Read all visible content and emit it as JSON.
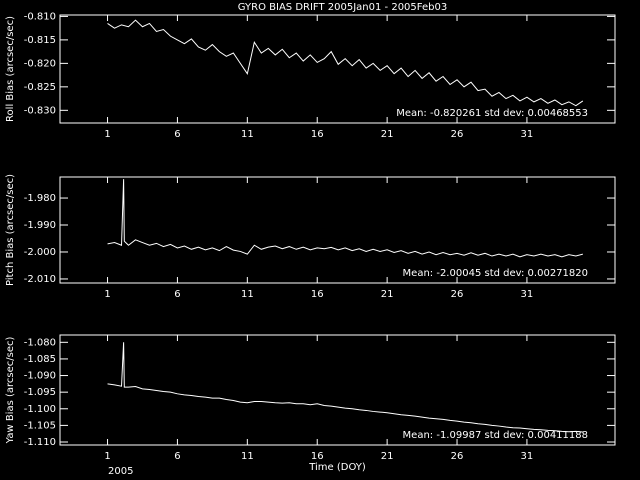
{
  "chart_data": [
    {
      "type": "line",
      "title": "GYRO BIAS DRIFT 2005Jan01 - 2005Feb03",
      "ylabel": "Roll Bias (arcsec/sec)",
      "annotation": "Mean: -0.820261 std dev: 0.00468553",
      "color": "#ffffff",
      "xlim": [
        -2.4,
        37.3
      ],
      "xticks": [
        1,
        6,
        11,
        16,
        21,
        26,
        31
      ],
      "ylim": [
        -0.8327,
        -0.8097
      ],
      "yticks": [
        {
          "value": -0.81,
          "label": "-0.810"
        },
        {
          "value": -0.815,
          "label": "-0.815"
        },
        {
          "value": -0.82,
          "label": "-0.820"
        },
        {
          "value": -0.825,
          "label": "-0.825"
        },
        {
          "value": -0.83,
          "label": "-0.830"
        }
      ],
      "x": [
        1,
        1.5,
        2,
        2.5,
        3,
        3.5,
        4,
        4.5,
        5,
        5.5,
        6,
        6.5,
        7,
        7.5,
        8,
        8.5,
        9,
        9.5,
        10,
        10.5,
        11,
        11.5,
        12,
        12.5,
        13,
        13.5,
        14,
        14.5,
        15,
        15.5,
        16,
        16.5,
        17,
        17.5,
        18,
        18.5,
        19,
        19.5,
        20,
        20.5,
        21,
        21.5,
        22,
        22.5,
        23,
        23.5,
        24,
        24.5,
        25,
        25.5,
        26,
        26.5,
        27,
        27.5,
        28,
        28.5,
        29,
        29.5,
        30,
        30.5,
        31,
        31.5,
        32,
        32.5,
        33,
        33.5,
        34,
        34.5,
        35
      ],
      "values": [
        -0.8115,
        -0.8125,
        -0.8118,
        -0.8122,
        -0.8108,
        -0.8122,
        -0.8115,
        -0.8132,
        -0.8128,
        -0.8142,
        -0.815,
        -0.8158,
        -0.8148,
        -0.8165,
        -0.8172,
        -0.816,
        -0.8175,
        -0.8185,
        -0.8178,
        -0.82,
        -0.8222,
        -0.8155,
        -0.8178,
        -0.8168,
        -0.8182,
        -0.817,
        -0.8188,
        -0.8178,
        -0.8195,
        -0.8182,
        -0.8198,
        -0.819,
        -0.8175,
        -0.8202,
        -0.819,
        -0.8205,
        -0.8192,
        -0.821,
        -0.82,
        -0.8215,
        -0.8205,
        -0.8222,
        -0.821,
        -0.8228,
        -0.8215,
        -0.8232,
        -0.822,
        -0.8238,
        -0.8228,
        -0.8245,
        -0.8235,
        -0.825,
        -0.824,
        -0.8258,
        -0.8255,
        -0.827,
        -0.8262,
        -0.8275,
        -0.8268,
        -0.828,
        -0.8272,
        -0.8282,
        -0.8275,
        -0.8285,
        -0.8278,
        -0.8288,
        -0.8282,
        -0.829,
        -0.828
      ]
    },
    {
      "type": "line",
      "ylabel": "Pitch Bias (arcsec/sec)",
      "annotation": "Mean: -2.00045 std dev: 0.00271820",
      "color": "#ffffff",
      "xlim": [
        -2.4,
        37.3
      ],
      "xticks": [
        1,
        6,
        11,
        16,
        21,
        26,
        31
      ],
      "ylim": [
        -2.0115,
        -1.9722
      ],
      "yticks": [
        {
          "value": -1.98,
          "label": "-1.980"
        },
        {
          "value": -1.99,
          "label": "-1.990"
        },
        {
          "value": -2.0,
          "label": "-2.000"
        },
        {
          "value": -2.01,
          "label": "-2.010"
        }
      ],
      "x": [
        1,
        1.5,
        2,
        2.15,
        2.2,
        2.5,
        3,
        3.5,
        4,
        4.5,
        5,
        5.5,
        6,
        6.5,
        7,
        7.5,
        8,
        8.5,
        9,
        9.5,
        10,
        10.5,
        11,
        11.5,
        12,
        12.5,
        13,
        13.5,
        14,
        14.5,
        15,
        15.5,
        16,
        16.5,
        17,
        17.5,
        18,
        18.5,
        19,
        19.5,
        20,
        20.5,
        21,
        21.5,
        22,
        22.5,
        23,
        23.5,
        24,
        24.5,
        25,
        25.5,
        26,
        26.5,
        27,
        27.5,
        28,
        28.5,
        29,
        29.5,
        30,
        30.5,
        31,
        31.5,
        32,
        32.5,
        33,
        33.5,
        34,
        34.5,
        35
      ],
      "values": [
        -1.997,
        -1.9965,
        -1.9975,
        -1.973,
        -1.996,
        -1.9975,
        -1.9955,
        -1.9965,
        -1.9975,
        -1.9968,
        -1.998,
        -1.9972,
        -1.9985,
        -1.9978,
        -1.999,
        -1.9982,
        -1.9992,
        -1.9985,
        -1.9995,
        -1.998,
        -1.9993,
        -1.9998,
        -2.0008,
        -1.9975,
        -1.999,
        -1.9982,
        -1.9978,
        -1.9988,
        -1.998,
        -1.999,
        -1.9982,
        -1.9992,
        -1.9985,
        -1.9988,
        -1.9983,
        -1.9992,
        -1.9985,
        -1.9995,
        -1.9988,
        -1.9998,
        -1.999,
        -1.9998,
        -1.9992,
        -2.0002,
        -1.9995,
        -2.0005,
        -1.9998,
        -2.0008,
        -2.0,
        -2.001,
        -2.0002,
        -2.001,
        -2.0005,
        -2.0012,
        -2.0003,
        -2.0012,
        -2.0005,
        -2.0015,
        -2.0008,
        -2.0015,
        -2.0008,
        -2.0018,
        -2.001,
        -2.0015,
        -2.0008,
        -2.0015,
        -2.001,
        -2.0018,
        -2.001,
        -2.0015,
        -2.0008
      ]
    },
    {
      "type": "line",
      "ylabel": "Yaw Bias (arcsec/sec)",
      "xlabel": "Time (DOY)",
      "annotation": "Mean: -1.09987 std dev: 0.00411188",
      "footnote": "2005",
      "color": "#ffffff",
      "xlim": [
        -2.4,
        37.3
      ],
      "xticks": [
        1,
        6,
        11,
        16,
        21,
        26,
        31
      ],
      "ylim": [
        -1.1109,
        -1.0778
      ],
      "yticks": [
        {
          "value": -1.08,
          "label": "-1.080"
        },
        {
          "value": -1.085,
          "label": "-1.085"
        },
        {
          "value": -1.09,
          "label": "-1.090"
        },
        {
          "value": -1.095,
          "label": "-1.095"
        },
        {
          "value": -1.1,
          "label": "-1.100"
        },
        {
          "value": -1.105,
          "label": "-1.105"
        },
        {
          "value": -1.11,
          "label": "-1.110"
        }
      ],
      "x": [
        1,
        1.5,
        2,
        2.15,
        2.2,
        2.5,
        3,
        3.5,
        4,
        4.5,
        5,
        5.5,
        6,
        6.5,
        7,
        7.5,
        8,
        8.5,
        9,
        9.5,
        10,
        10.5,
        11,
        11.5,
        12,
        12.5,
        13,
        13.5,
        14,
        14.5,
        15,
        15.5,
        16,
        16.5,
        17,
        17.5,
        18,
        18.5,
        19,
        19.5,
        20,
        20.5,
        21,
        21.5,
        22,
        22.5,
        23,
        23.5,
        24,
        24.5,
        25,
        25.5,
        26,
        26.5,
        27,
        27.5,
        28,
        28.5,
        29,
        29.5,
        30,
        30.5,
        31,
        31.5,
        32,
        32.5,
        33,
        33.5,
        34,
        34.5,
        35
      ],
      "values": [
        -1.0925,
        -1.0928,
        -1.0932,
        -1.08,
        -1.0935,
        -1.0935,
        -1.0933,
        -1.094,
        -1.0942,
        -1.0945,
        -1.0948,
        -1.095,
        -1.0955,
        -1.0958,
        -1.096,
        -1.0963,
        -1.0965,
        -1.0968,
        -1.0968,
        -1.0972,
        -1.0975,
        -1.098,
        -1.0982,
        -1.0978,
        -1.0978,
        -1.098,
        -1.0982,
        -1.0983,
        -1.0982,
        -1.0985,
        -1.0985,
        -1.0988,
        -1.0985,
        -1.099,
        -1.0992,
        -1.0995,
        -1.0998,
        -1.1,
        -1.1003,
        -1.1005,
        -1.1008,
        -1.101,
        -1.1012,
        -1.1015,
        -1.1018,
        -1.102,
        -1.1022,
        -1.1025,
        -1.1028,
        -1.103,
        -1.1032,
        -1.1035,
        -1.1037,
        -1.104,
        -1.1042,
        -1.1045,
        -1.1047,
        -1.105,
        -1.1052,
        -1.1055,
        -1.1057,
        -1.1058,
        -1.106,
        -1.1062,
        -1.1063,
        -1.1065,
        -1.1066,
        -1.1068,
        -1.1069,
        -1.1068,
        -1.107
      ]
    }
  ]
}
